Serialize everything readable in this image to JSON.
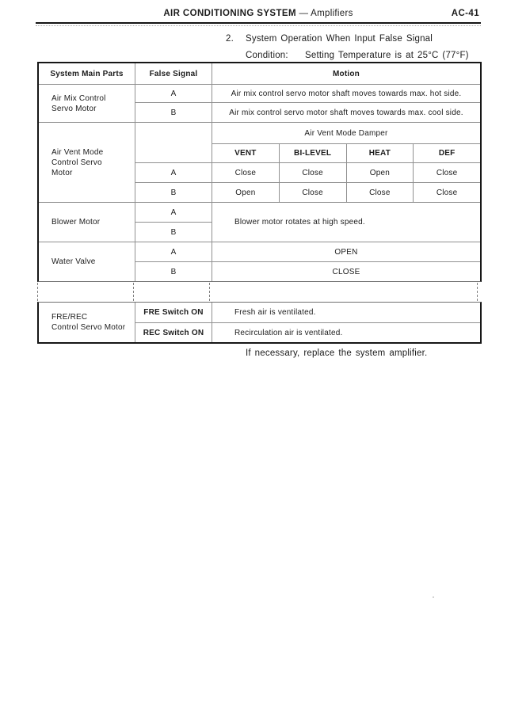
{
  "page": {
    "header": {
      "title": "AIR CONDITIONING SYSTEM",
      "separator": "—",
      "subtitle": "Amplifiers",
      "page_number": "AC-41"
    },
    "intro": {
      "item_number": "2.",
      "heading": "System Operation When Input False Signal",
      "condition_label": "Condition:",
      "condition_value": "Setting Temperature is at 25°C (77°F)"
    },
    "table": {
      "col_headers": {
        "part": "System Main Parts",
        "signal": "False Signal",
        "motion": "Motion"
      },
      "air_mix": {
        "part_lines": [
          "Air Mix Control",
          "Servo Motor"
        ],
        "rows": [
          {
            "signal": "A",
            "motion": "Air mix control servo motor shaft moves towards max. hot side."
          },
          {
            "signal": "B",
            "motion": "Air mix control servo motor shaft moves towards max. cool side."
          }
        ]
      },
      "air_vent": {
        "part_lines": [
          "Air Vent Mode",
          "Control Servo",
          "Motor"
        ],
        "damper_title": "Air Vent Mode Damper",
        "damper_columns": [
          "VENT",
          "BI-LEVEL",
          "HEAT",
          "DEF"
        ],
        "rows": [
          {
            "signal": "A",
            "values": [
              "Close",
              "Close",
              "Open",
              "Close"
            ]
          },
          {
            "signal": "B",
            "values": [
              "Open",
              "Close",
              "Close",
              "Close"
            ]
          }
        ]
      },
      "blower": {
        "part_lines": [
          "Blower Motor"
        ],
        "signals": [
          "A",
          "B"
        ],
        "motion": "Blower motor rotates at high speed."
      },
      "water_valve": {
        "part_lines": [
          "Water Valve"
        ],
        "rows": [
          {
            "signal": "A",
            "motion": "OPEN"
          },
          {
            "signal": "B",
            "motion": "CLOSE"
          }
        ]
      },
      "fre_rec": {
        "part_lines": [
          "FRE/REC",
          "Control Servo Motor"
        ],
        "rows": [
          {
            "signal": "FRE Switch ON",
            "motion": "Fresh air is ventilated."
          },
          {
            "signal": "REC Switch ON",
            "motion": "Recirculation air is ventilated."
          }
        ]
      }
    },
    "footnote": "If necessary, replace the system amplifier."
  }
}
